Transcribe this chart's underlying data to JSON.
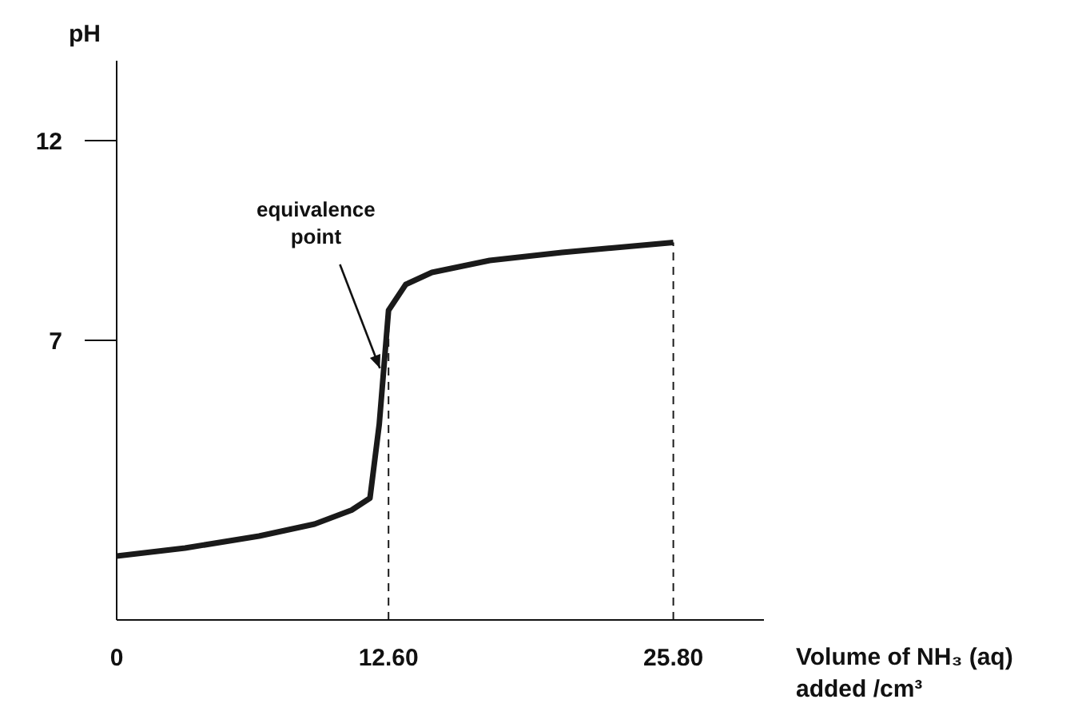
{
  "chart_data": {
    "type": "line",
    "ylabel": "pH",
    "xlabel": "Volume of NH₃ (aq) added /cm³",
    "x": [
      0,
      3.17,
      6.6,
      9.17,
      10.89,
      11.74,
      12.17,
      12.6,
      13.4,
      14.61,
      17.29,
      20.64,
      25.8
    ],
    "series": [
      {
        "color": "#1a1a1a",
        "values": [
          1.6,
          1.8,
          2.1,
          2.4,
          2.75,
          3.05,
          4.9,
          7.75,
          8.4,
          8.7,
          9.0,
          9.2,
          9.45
        ]
      }
    ],
    "xlim": [
      0,
      30
    ],
    "xticks": [
      0,
      {
        "value": 12.6,
        "label": "12.60"
      },
      {
        "value": 25.8,
        "label": "25.80"
      }
    ],
    "ylim": [
      0,
      14
    ],
    "yticks": [
      7,
      12
    ],
    "ref_lines": [
      {
        "axis": "x",
        "value": 12.6,
        "line_style": "dashed",
        "color": "#1a1a1a"
      },
      {
        "axis": "x",
        "value": 25.8,
        "line_style": "dashed",
        "color": "#1a1a1a"
      }
    ],
    "annotations": [
      {
        "text": "equivalence point",
        "x": 12.2,
        "y": 6.3
      }
    ],
    "grid": false,
    "legend": false,
    "marker": "none",
    "line_style": "solid"
  }
}
